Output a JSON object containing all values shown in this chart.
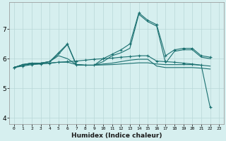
{
  "title": "",
  "xlabel": "Humidex (Indice chaleur)",
  "ylabel": "",
  "bg_color": "#d6efef",
  "grid_color": "#b8d8d8",
  "line_color": "#1a7070",
  "xlim": [
    -0.5,
    23.5
  ],
  "ylim": [
    3.8,
    7.9
  ],
  "yticks": [
    4,
    5,
    6,
    7
  ],
  "xticks": [
    0,
    1,
    2,
    3,
    4,
    5,
    6,
    7,
    8,
    9,
    10,
    11,
    12,
    13,
    14,
    15,
    16,
    17,
    18,
    19,
    20,
    21,
    22,
    23
  ],
  "series": [
    {
      "x": [
        0,
        1,
        2,
        3,
        4,
        5,
        6,
        7,
        8,
        9,
        10,
        11,
        12,
        13,
        14,
        15,
        16,
        17,
        18,
        19,
        20,
        21,
        22
      ],
      "y": [
        5.7,
        5.8,
        5.85,
        5.85,
        5.9,
        6.2,
        6.5,
        5.8,
        5.78,
        5.78,
        6.0,
        6.15,
        6.3,
        6.5,
        7.55,
        7.3,
        7.15,
        6.1,
        6.3,
        6.35,
        6.35,
        6.1,
        6.05
      ],
      "marker": true
    },
    {
      "x": [
        0,
        1,
        2,
        3,
        4,
        5,
        6,
        7,
        8,
        9,
        10,
        11,
        12,
        13,
        14,
        15,
        16,
        17,
        18,
        19,
        20,
        21,
        22
      ],
      "y": [
        5.7,
        5.8,
        5.85,
        5.85,
        5.9,
        6.15,
        6.48,
        5.78,
        5.78,
        5.78,
        5.9,
        6.1,
        6.2,
        6.35,
        7.5,
        7.25,
        7.1,
        5.85,
        6.25,
        6.3,
        6.3,
        6.05,
        6.0
      ],
      "marker": false
    },
    {
      "x": [
        0,
        1,
        2,
        3,
        4,
        5,
        6,
        7,
        8,
        9,
        10,
        11,
        12,
        13,
        14,
        15,
        16,
        17,
        18,
        19,
        20,
        21,
        22
      ],
      "y": [
        5.7,
        5.8,
        5.85,
        5.85,
        5.9,
        6.1,
        6.0,
        5.8,
        5.78,
        5.78,
        5.82,
        5.85,
        5.9,
        5.95,
        5.98,
        5.98,
        5.75,
        5.7,
        5.7,
        5.7,
        5.7,
        5.68,
        5.65
      ],
      "marker": false
    },
    {
      "x": [
        0,
        1,
        2,
        3,
        4,
        5,
        6,
        7,
        8,
        9,
        10,
        11,
        12,
        13,
        14,
        15,
        16,
        17,
        18,
        19,
        20,
        21,
        22
      ],
      "y": [
        5.7,
        5.78,
        5.82,
        5.83,
        5.85,
        5.88,
        5.88,
        5.8,
        5.78,
        5.78,
        5.79,
        5.8,
        5.82,
        5.84,
        5.86,
        5.86,
        5.82,
        5.8,
        5.8,
        5.8,
        5.8,
        5.78,
        5.75
      ],
      "marker": false
    },
    {
      "x": [
        0,
        1,
        2,
        3,
        4,
        5,
        6,
        7,
        8,
        9,
        10,
        11,
        12,
        13,
        14,
        15,
        16,
        17,
        18,
        19,
        20,
        21,
        22
      ],
      "y": [
        5.7,
        5.75,
        5.8,
        5.82,
        5.85,
        5.88,
        5.9,
        5.92,
        5.95,
        5.98,
        6.0,
        6.02,
        6.05,
        6.07,
        6.1,
        6.1,
        5.92,
        5.9,
        5.88,
        5.85,
        5.82,
        5.78,
        4.35
      ],
      "marker": true
    }
  ]
}
